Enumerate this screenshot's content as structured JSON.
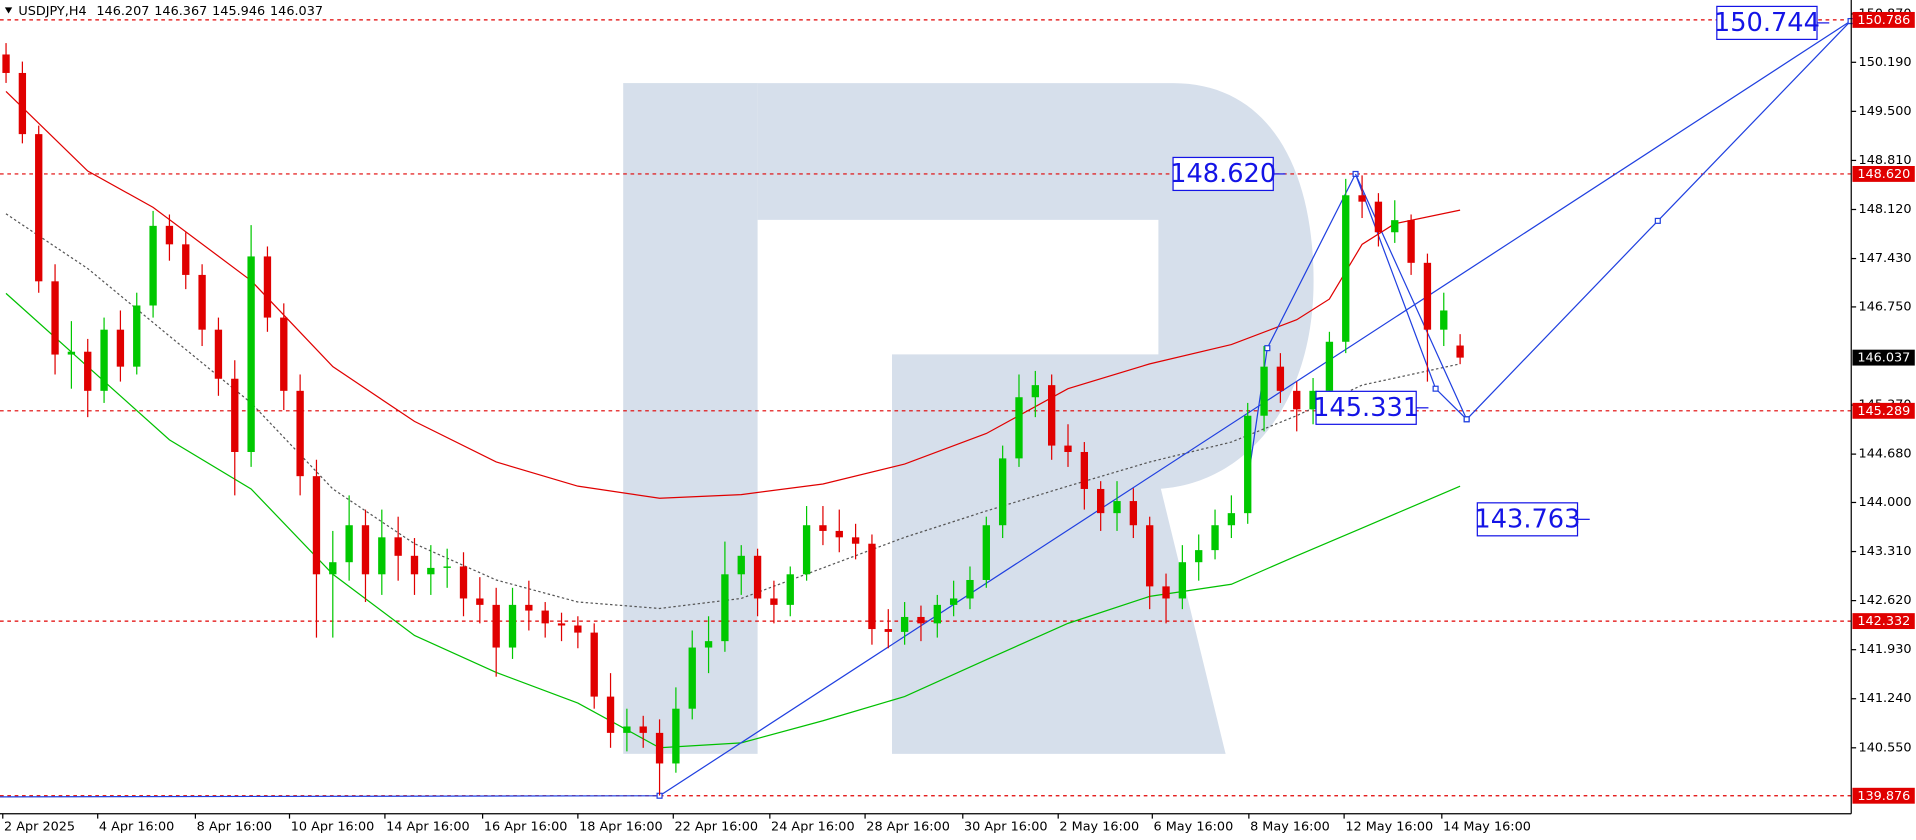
{
  "chart_data": {
    "type": "candlestick",
    "title": "USDJPY,H4",
    "up_color": "#00c800",
    "down_color": "#e00000",
    "xlim": [
      -0.37,
      112.94
    ],
    "ylim": [
      139.623,
      151.066
    ],
    "xticks": [
      {
        "value": -0.2,
        "label": "2 Apr 2025"
      },
      {
        "value": 5.61,
        "label": "4 Apr 16:00"
      },
      {
        "value": 11.59,
        "label": "8 Apr 16:00"
      },
      {
        "value": 17.35,
        "label": "10 Apr 16:00"
      },
      {
        "value": 23.19,
        "label": "14 Apr 16:00"
      },
      {
        "value": 29.17,
        "label": "16 Apr 16:00"
      },
      {
        "value": 35.0,
        "label": "18 Apr 16:00"
      },
      {
        "value": 40.84,
        "label": "22 Apr 16:00"
      },
      {
        "value": 46.75,
        "label": "24 Apr 16:00"
      },
      {
        "value": 52.58,
        "label": "28 Apr 16:00"
      },
      {
        "value": 58.56,
        "label": "30 Apr 16:00"
      },
      {
        "value": 64.4,
        "label": "2 May 16:00"
      },
      {
        "value": 70.16,
        "label": "6 May 16:00"
      },
      {
        "value": 76.07,
        "label": "8 May 16:00"
      },
      {
        "value": 81.9,
        "label": "12 May 16:00"
      },
      {
        "value": 87.88,
        "label": "14 May 16:00"
      }
    ],
    "yticks": [
      {
        "value": 150.87,
        "label": "150.870"
      },
      {
        "value": 150.19,
        "label": "150.190"
      },
      {
        "value": 149.5,
        "label": "149.500"
      },
      {
        "value": 148.81,
        "label": "148.810"
      },
      {
        "value": 148.12,
        "label": "148.120"
      },
      {
        "value": 147.43,
        "label": "147.430"
      },
      {
        "value": 146.75,
        "label": "146.750"
      },
      {
        "value": 145.37,
        "label": "145.370"
      },
      {
        "value": 144.68,
        "label": "144.680"
      },
      {
        "value": 144.0,
        "label": "144.000"
      },
      {
        "value": 143.31,
        "label": "143.310"
      },
      {
        "value": 142.62,
        "label": "142.620"
      },
      {
        "value": 141.93,
        "label": "141.930"
      },
      {
        "value": 141.24,
        "label": "141.240"
      },
      {
        "value": 140.55,
        "label": "140.550"
      }
    ],
    "levels": [
      150.786,
      {
        "value": 148.62,
        "label": "148.620"
      },
      145.289,
      142.332,
      139.876
    ],
    "level_color": "#e00000",
    "annotations": [
      150.744,
      {
        "value": 148.62,
        "label": "148.620"
      },
      145.331,
      143.763
    ],
    "annotation_color": "#1414e6",
    "candles": [
      [
        150.3,
        150.46,
        149.9,
        150.04
      ],
      [
        150.04,
        150.2,
        149.05,
        149.18
      ],
      [
        149.18,
        149.3,
        146.95,
        147.11
      ],
      [
        147.11,
        147.35,
        145.8,
        146.08
      ],
      [
        146.08,
        146.55,
        145.6,
        146.12
      ],
      [
        146.12,
        146.3,
        145.2,
        145.57
      ],
      [
        145.57,
        146.6,
        145.4,
        146.43
      ],
      [
        146.43,
        146.7,
        145.7,
        145.91
      ],
      [
        145.91,
        146.95,
        145.8,
        146.77
      ],
      [
        146.77,
        148.1,
        146.6,
        147.89
      ],
      [
        147.89,
        148.05,
        147.4,
        147.63
      ],
      [
        147.63,
        147.8,
        147.0,
        147.2
      ],
      [
        147.2,
        147.35,
        146.2,
        146.43
      ],
      [
        146.43,
        146.6,
        145.5,
        145.74
      ],
      [
        145.74,
        146.0,
        144.1,
        144.71
      ],
      [
        144.71,
        147.9,
        144.5,
        147.46
      ],
      [
        147.46,
        147.6,
        146.4,
        146.6
      ],
      [
        146.6,
        146.8,
        145.3,
        145.57
      ],
      [
        145.57,
        145.8,
        144.1,
        144.37
      ],
      [
        144.37,
        144.6,
        142.1,
        142.99
      ],
      [
        142.99,
        143.6,
        142.1,
        143.16
      ],
      [
        143.16,
        144.1,
        142.9,
        143.68
      ],
      [
        143.68,
        143.9,
        142.6,
        142.99
      ],
      [
        142.99,
        143.9,
        142.7,
        143.51
      ],
      [
        143.51,
        143.8,
        142.9,
        143.25
      ],
      [
        143.25,
        143.5,
        142.7,
        142.99
      ],
      [
        142.99,
        143.4,
        142.7,
        143.08
      ],
      [
        143.08,
        143.35,
        142.8,
        143.1
      ],
      [
        143.1,
        143.3,
        142.4,
        142.65
      ],
      [
        142.65,
        142.95,
        142.3,
        142.56
      ],
      [
        142.56,
        142.8,
        141.55,
        141.96
      ],
      [
        141.96,
        142.8,
        141.8,
        142.56
      ],
      [
        142.56,
        142.9,
        142.2,
        142.48
      ],
      [
        142.48,
        142.6,
        142.1,
        142.3
      ],
      [
        142.3,
        142.45,
        142.05,
        142.27
      ],
      [
        142.27,
        142.4,
        141.95,
        142.17
      ],
      [
        142.17,
        142.3,
        141.1,
        141.27
      ],
      [
        141.27,
        141.6,
        140.55,
        140.76
      ],
      [
        140.76,
        141.1,
        140.5,
        140.85
      ],
      [
        140.85,
        141.0,
        140.55,
        140.76
      ],
      [
        140.76,
        140.95,
        139.88,
        140.33
      ],
      [
        140.33,
        141.4,
        140.2,
        141.1
      ],
      [
        141.1,
        142.2,
        140.95,
        141.96
      ],
      [
        141.96,
        142.4,
        141.6,
        142.05
      ],
      [
        142.05,
        143.45,
        141.9,
        142.99
      ],
      [
        142.99,
        143.4,
        142.7,
        143.25
      ],
      [
        143.25,
        143.35,
        142.4,
        142.65
      ],
      [
        142.65,
        142.9,
        142.3,
        142.56
      ],
      [
        142.56,
        143.1,
        142.4,
        142.99
      ],
      [
        142.99,
        143.95,
        142.9,
        143.68
      ],
      [
        143.68,
        143.95,
        143.4,
        143.6
      ],
      [
        143.6,
        143.9,
        143.3,
        143.51
      ],
      [
        143.51,
        143.7,
        143.2,
        143.42
      ],
      [
        143.42,
        143.55,
        142.0,
        142.22
      ],
      [
        142.22,
        142.5,
        141.95,
        142.18
      ],
      [
        142.18,
        142.6,
        142.0,
        142.39
      ],
      [
        142.39,
        142.55,
        142.05,
        142.3
      ],
      [
        142.3,
        142.7,
        142.1,
        142.56
      ],
      [
        142.56,
        142.9,
        142.4,
        142.65
      ],
      [
        142.65,
        143.1,
        142.5,
        142.91
      ],
      [
        142.91,
        143.8,
        142.8,
        143.68
      ],
      [
        143.68,
        144.8,
        143.5,
        144.62
      ],
      [
        144.62,
        145.8,
        144.5,
        145.48
      ],
      [
        145.48,
        145.85,
        145.2,
        145.65
      ],
      [
        145.65,
        145.8,
        144.6,
        144.8
      ],
      [
        144.8,
        145.1,
        144.5,
        144.71
      ],
      [
        144.71,
        144.85,
        143.9,
        144.19
      ],
      [
        144.19,
        144.3,
        143.6,
        143.85
      ],
      [
        143.85,
        144.3,
        143.6,
        144.02
      ],
      [
        144.02,
        144.2,
        143.5,
        143.68
      ],
      [
        143.68,
        143.8,
        142.5,
        142.82
      ],
      [
        142.82,
        143.0,
        142.3,
        142.65
      ],
      [
        142.65,
        143.4,
        142.5,
        143.16
      ],
      [
        143.16,
        143.55,
        142.9,
        143.33
      ],
      [
        143.33,
        143.9,
        143.2,
        143.68
      ],
      [
        143.68,
        144.1,
        143.5,
        143.85
      ],
      [
        143.85,
        145.4,
        143.7,
        145.22
      ],
      [
        145.22,
        146.2,
        145.0,
        145.91
      ],
      [
        145.91,
        146.1,
        145.4,
        145.57
      ],
      [
        145.57,
        145.7,
        145.0,
        145.31
      ],
      [
        145.31,
        145.75,
        145.1,
        145.57
      ],
      [
        145.57,
        146.4,
        145.4,
        146.26
      ],
      [
        146.26,
        148.55,
        146.1,
        148.32
      ],
      [
        148.32,
        148.6,
        148.0,
        148.23
      ],
      [
        148.23,
        148.35,
        147.6,
        147.8
      ],
      [
        147.8,
        148.25,
        147.65,
        147.97
      ],
      [
        147.97,
        148.05,
        147.2,
        147.37
      ],
      [
        147.37,
        147.5,
        145.7,
        146.43
      ],
      [
        146.43,
        146.95,
        146.2,
        146.7
      ],
      [
        146.207,
        146.367,
        145.946,
        146.037
      ]
    ],
    "series": [
      {
        "color": "#e00000",
        "x": [
          0,
          5,
          9,
          15,
          20,
          25,
          30,
          35,
          40,
          45,
          50,
          55,
          60,
          65,
          70,
          75,
          79,
          81,
          83,
          85,
          89
        ],
        "values": [
          149.78,
          148.66,
          148.15,
          147.12,
          145.91,
          145.14,
          144.57,
          144.23,
          144.06,
          144.11,
          144.26,
          144.54,
          144.97,
          145.6,
          145.95,
          146.22,
          146.57,
          146.86,
          147.63,
          147.92,
          148.11
        ]
      },
      {
        "color": "#00c000",
        "x": [
          0,
          5,
          10,
          15,
          20,
          25,
          30,
          35,
          40,
          45,
          50,
          55,
          60,
          65,
          70,
          75,
          79,
          83,
          89
        ],
        "values": [
          146.94,
          145.91,
          144.88,
          144.19,
          142.99,
          142.13,
          141.61,
          141.18,
          140.55,
          140.62,
          140.93,
          141.27,
          141.79,
          142.3,
          142.68,
          142.85,
          143.25,
          143.64,
          144.23
        ]
      },
      {
        "color": "#555555",
        "dashed": true,
        "x": [
          0,
          5,
          10,
          15,
          20,
          25,
          30,
          35,
          40,
          45,
          50,
          55,
          60,
          65,
          70,
          75,
          79,
          83,
          89
        ],
        "values": [
          148.06,
          147.29,
          146.34,
          145.4,
          144.19,
          143.42,
          142.91,
          142.6,
          142.51,
          142.65,
          143.08,
          143.51,
          143.88,
          144.23,
          144.57,
          144.85,
          145.22,
          145.65,
          145.95
        ]
      },
      {
        "color": "#2040e0",
        "markers": true,
        "x": [
          -0.37,
          40.0,
          112.9
        ],
        "values": [
          139.86,
          139.876,
          150.77
        ]
      },
      {
        "color": "#2040e0",
        "markers": true,
        "x": [
          76.1,
          77.2,
          82.6,
          87.5,
          89.4,
          101.1,
          112.9
        ],
        "values": [
          144.45,
          146.17,
          148.62,
          145.6,
          145.17,
          147.96,
          150.77
        ]
      },
      {
        "color": "#2040e0",
        "markers": true,
        "x": [
          82.6,
          89.4
        ],
        "values": [
          148.62,
          145.17
        ]
      }
    ]
  }
}
